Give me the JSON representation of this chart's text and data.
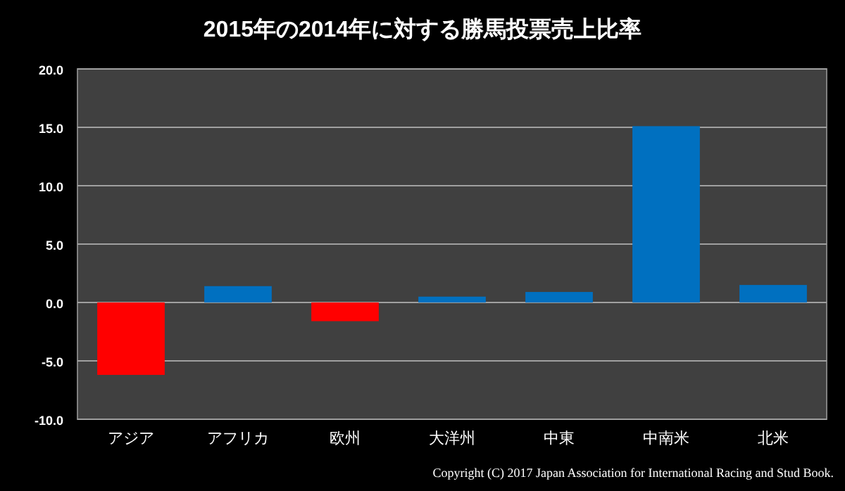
{
  "chart_data": {
    "type": "bar",
    "title": "2015年の2014年に対する勝馬投票売上比率",
    "categories": [
      "アジア",
      "アフリカ",
      "欧州",
      "大洋州",
      "中東",
      "中南米",
      "北米"
    ],
    "values": [
      -6.2,
      1.4,
      -1.6,
      0.5,
      0.9,
      15.1,
      1.5
    ],
    "colors": [
      "#ff0000",
      "#0070c0",
      "#ff0000",
      "#0070c0",
      "#0070c0",
      "#0070c0",
      "#0070c0"
    ],
    "ylim": [
      -10,
      20
    ],
    "yticks": [
      {
        "value": -10,
        "label": "-10.0"
      },
      {
        "value": -5,
        "label": "-5.0"
      },
      {
        "value": 0,
        "label": "0.0"
      },
      {
        "value": 5,
        "label": "5.0"
      },
      {
        "value": 10,
        "label": "10.0"
      },
      {
        "value": 15,
        "label": "15.0"
      },
      {
        "value": 20,
        "label": "20.0"
      }
    ],
    "grid": "y",
    "annotations": [
      "Copyright (C) 2017 Japan Association for International Racing and Stud Book."
    ]
  }
}
